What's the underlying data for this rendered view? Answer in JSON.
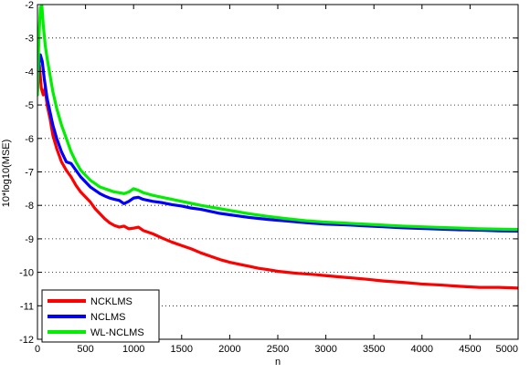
{
  "chart_data": {
    "type": "line",
    "title": "",
    "xlabel": "n",
    "ylabel": "10*log10(MSE)",
    "xlim": [
      0,
      5000
    ],
    "ylim": [
      -12,
      -2
    ],
    "xticks": [
      0,
      500,
      1000,
      1500,
      2000,
      2500,
      3000,
      3500,
      4000,
      4500,
      5000
    ],
    "yticks": [
      -12,
      -11,
      -10,
      -9,
      -8,
      -7,
      -6,
      -5,
      -4,
      -3,
      -2
    ],
    "grid": "horizontal-dotted",
    "legend_position": "bottom-left",
    "series": [
      {
        "name": "NCKLMS",
        "color": "#ff0000",
        "points": [
          [
            0,
            -4.2
          ],
          [
            20,
            -3.8
          ],
          [
            40,
            -4.5
          ],
          [
            60,
            -4.7
          ],
          [
            80,
            -4.5
          ],
          [
            100,
            -5.0
          ],
          [
            130,
            -5.4
          ],
          [
            160,
            -5.9
          ],
          [
            200,
            -6.3
          ],
          [
            250,
            -6.7
          ],
          [
            300,
            -6.95
          ],
          [
            350,
            -7.15
          ],
          [
            400,
            -7.4
          ],
          [
            450,
            -7.6
          ],
          [
            500,
            -7.75
          ],
          [
            550,
            -7.9
          ],
          [
            600,
            -8.1
          ],
          [
            650,
            -8.25
          ],
          [
            700,
            -8.4
          ],
          [
            750,
            -8.52
          ],
          [
            800,
            -8.6
          ],
          [
            850,
            -8.65
          ],
          [
            900,
            -8.62
          ],
          [
            950,
            -8.7
          ],
          [
            1000,
            -8.68
          ],
          [
            1050,
            -8.65
          ],
          [
            1100,
            -8.75
          ],
          [
            1200,
            -8.85
          ],
          [
            1300,
            -8.98
          ],
          [
            1400,
            -9.1
          ],
          [
            1500,
            -9.2
          ],
          [
            1600,
            -9.3
          ],
          [
            1700,
            -9.42
          ],
          [
            1800,
            -9.52
          ],
          [
            1900,
            -9.62
          ],
          [
            2000,
            -9.7
          ],
          [
            2100,
            -9.76
          ],
          [
            2200,
            -9.82
          ],
          [
            2300,
            -9.88
          ],
          [
            2400,
            -9.92
          ],
          [
            2500,
            -9.97
          ],
          [
            2600,
            -10.0
          ],
          [
            2700,
            -10.03
          ],
          [
            2800,
            -10.05
          ],
          [
            2900,
            -10.07
          ],
          [
            3000,
            -10.1
          ],
          [
            3200,
            -10.15
          ],
          [
            3400,
            -10.2
          ],
          [
            3600,
            -10.26
          ],
          [
            3800,
            -10.3
          ],
          [
            4000,
            -10.35
          ],
          [
            4200,
            -10.38
          ],
          [
            4400,
            -10.42
          ],
          [
            4600,
            -10.45
          ],
          [
            4800,
            -10.45
          ],
          [
            5000,
            -10.47
          ]
        ]
      },
      {
        "name": "NCLMS",
        "color": "#0000ff",
        "points": [
          [
            0,
            -4.6
          ],
          [
            15,
            -3.8
          ],
          [
            30,
            -3.5
          ],
          [
            50,
            -3.7
          ],
          [
            70,
            -4.2
          ],
          [
            100,
            -4.8
          ],
          [
            130,
            -5.2
          ],
          [
            160,
            -5.6
          ],
          [
            200,
            -6.0
          ],
          [
            250,
            -6.4
          ],
          [
            300,
            -6.7
          ],
          [
            350,
            -6.75
          ],
          [
            400,
            -6.95
          ],
          [
            450,
            -7.15
          ],
          [
            500,
            -7.3
          ],
          [
            550,
            -7.45
          ],
          [
            600,
            -7.55
          ],
          [
            650,
            -7.65
          ],
          [
            700,
            -7.72
          ],
          [
            750,
            -7.78
          ],
          [
            800,
            -7.82
          ],
          [
            850,
            -7.85
          ],
          [
            900,
            -7.95
          ],
          [
            950,
            -7.88
          ],
          [
            1000,
            -7.78
          ],
          [
            1050,
            -7.76
          ],
          [
            1100,
            -7.82
          ],
          [
            1200,
            -7.88
          ],
          [
            1300,
            -7.92
          ],
          [
            1400,
            -7.98
          ],
          [
            1500,
            -8.02
          ],
          [
            1600,
            -8.08
          ],
          [
            1700,
            -8.12
          ],
          [
            1800,
            -8.18
          ],
          [
            1900,
            -8.24
          ],
          [
            2000,
            -8.28
          ],
          [
            2200,
            -8.36
          ],
          [
            2400,
            -8.42
          ],
          [
            2600,
            -8.47
          ],
          [
            2800,
            -8.52
          ],
          [
            3000,
            -8.56
          ],
          [
            3200,
            -8.58
          ],
          [
            3400,
            -8.61
          ],
          [
            3600,
            -8.64
          ],
          [
            3800,
            -8.67
          ],
          [
            4000,
            -8.69
          ],
          [
            4200,
            -8.71
          ],
          [
            4400,
            -8.73
          ],
          [
            4600,
            -8.74
          ],
          [
            4800,
            -8.76
          ],
          [
            5000,
            -8.77
          ]
        ]
      },
      {
        "name": "WL-NCLMS",
        "color": "#00ee00",
        "points": [
          [
            0,
            -4.7
          ],
          [
            15,
            -3.0
          ],
          [
            30,
            -2.1
          ],
          [
            45,
            -2.0
          ],
          [
            60,
            -2.6
          ],
          [
            80,
            -3.2
          ],
          [
            100,
            -3.6
          ],
          [
            130,
            -4.1
          ],
          [
            160,
            -4.6
          ],
          [
            200,
            -5.1
          ],
          [
            250,
            -5.6
          ],
          [
            300,
            -6.0
          ],
          [
            350,
            -6.4
          ],
          [
            400,
            -6.7
          ],
          [
            450,
            -6.95
          ],
          [
            500,
            -7.1
          ],
          [
            550,
            -7.25
          ],
          [
            600,
            -7.35
          ],
          [
            650,
            -7.45
          ],
          [
            700,
            -7.5
          ],
          [
            750,
            -7.55
          ],
          [
            800,
            -7.6
          ],
          [
            850,
            -7.62
          ],
          [
            900,
            -7.65
          ],
          [
            950,
            -7.6
          ],
          [
            1000,
            -7.5
          ],
          [
            1050,
            -7.55
          ],
          [
            1100,
            -7.62
          ],
          [
            1200,
            -7.7
          ],
          [
            1300,
            -7.76
          ],
          [
            1400,
            -7.82
          ],
          [
            1500,
            -7.88
          ],
          [
            1600,
            -7.94
          ],
          [
            1700,
            -8.0
          ],
          [
            1800,
            -8.05
          ],
          [
            1900,
            -8.1
          ],
          [
            2000,
            -8.15
          ],
          [
            2200,
            -8.25
          ],
          [
            2400,
            -8.33
          ],
          [
            2600,
            -8.4
          ],
          [
            2800,
            -8.46
          ],
          [
            3000,
            -8.5
          ],
          [
            3200,
            -8.53
          ],
          [
            3400,
            -8.56
          ],
          [
            3600,
            -8.59
          ],
          [
            3800,
            -8.62
          ],
          [
            4000,
            -8.64
          ],
          [
            4200,
            -8.66
          ],
          [
            4400,
            -8.68
          ],
          [
            4600,
            -8.7
          ],
          [
            4800,
            -8.71
          ],
          [
            5000,
            -8.72
          ]
        ]
      }
    ]
  }
}
